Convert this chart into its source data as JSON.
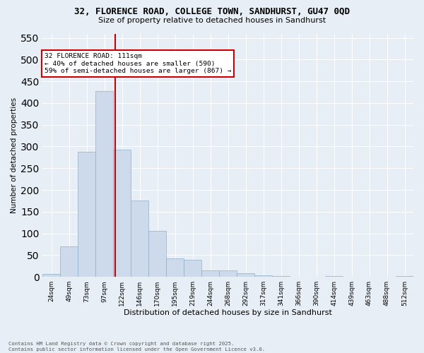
{
  "title_line1": "32, FLORENCE ROAD, COLLEGE TOWN, SANDHURST, GU47 0QD",
  "title_line2": "Size of property relative to detached houses in Sandhurst",
  "xlabel": "Distribution of detached houses by size in Sandhurst",
  "ylabel": "Number of detached properties",
  "categories": [
    "24sqm",
    "49sqm",
    "73sqm",
    "97sqm",
    "122sqm",
    "146sqm",
    "170sqm",
    "195sqm",
    "219sqm",
    "244sqm",
    "268sqm",
    "292sqm",
    "317sqm",
    "341sqm",
    "366sqm",
    "390sqm",
    "414sqm",
    "439sqm",
    "463sqm",
    "488sqm",
    "512sqm"
  ],
  "values": [
    7,
    70,
    288,
    428,
    293,
    175,
    105,
    42,
    39,
    15,
    14,
    8,
    3,
    1,
    0,
    0,
    2,
    0,
    0,
    0,
    2
  ],
  "bar_color": "#ccdaeb",
  "bar_edge_color": "#92aec8",
  "background_color": "#e8eef5",
  "grid_color": "#ffffff",
  "vline_color": "#cc0000",
  "vline_xindex": 3.6,
  "annotation_title": "32 FLORENCE ROAD: 111sqm",
  "annotation_line1": "← 40% of detached houses are smaller (590)",
  "annotation_line2": "59% of semi-detached houses are larger (867) →",
  "ylim": [
    0,
    560
  ],
  "yticks": [
    0,
    50,
    100,
    150,
    200,
    250,
    300,
    350,
    400,
    450,
    500,
    550
  ],
  "footnote1": "Contains HM Land Registry data © Crown copyright and database right 2025.",
  "footnote2": "Contains public sector information licensed under the Open Government Licence v3.0."
}
